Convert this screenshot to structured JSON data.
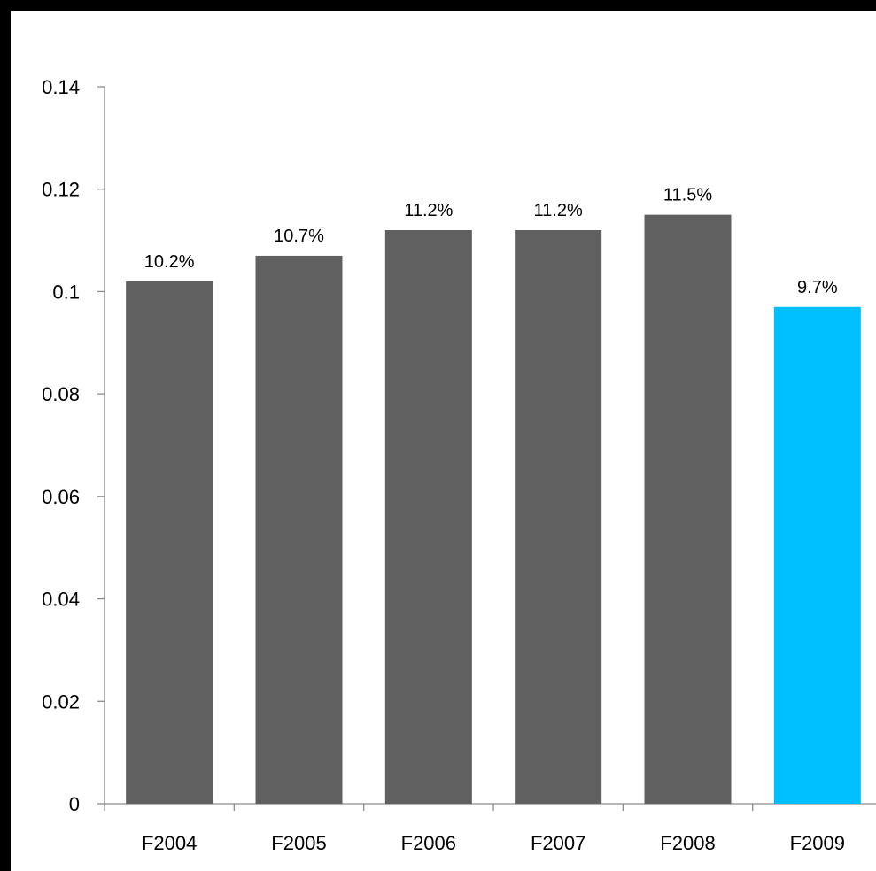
{
  "chart_data": {
    "type": "bar",
    "title": "",
    "xlabel": "",
    "ylabel": "",
    "categories": [
      "F2004",
      "F2005",
      "F2006",
      "F2007",
      "F2008",
      "F2009"
    ],
    "values": [
      0.102,
      0.107,
      0.112,
      0.112,
      0.115,
      0.097
    ],
    "data_labels": [
      "10.2%",
      "10.7%",
      "11.2%",
      "11.2%",
      "11.5%",
      "9.7%"
    ],
    "ylim": [
      0,
      0.14
    ],
    "yticks": [
      0,
      0.02,
      0.04,
      0.06,
      0.08,
      0.1,
      0.12,
      0.14
    ],
    "ytick_labels": [
      "0",
      "0.02",
      "0.04",
      "0.06",
      "0.08",
      "0.1",
      "0.12",
      "0.14"
    ],
    "grid": false,
    "legend": "none",
    "colors": {
      "bar": "#606060",
      "highlight_bar": "#00BFFF",
      "axis": "#8c8c8c"
    },
    "highlight_index": 5
  }
}
